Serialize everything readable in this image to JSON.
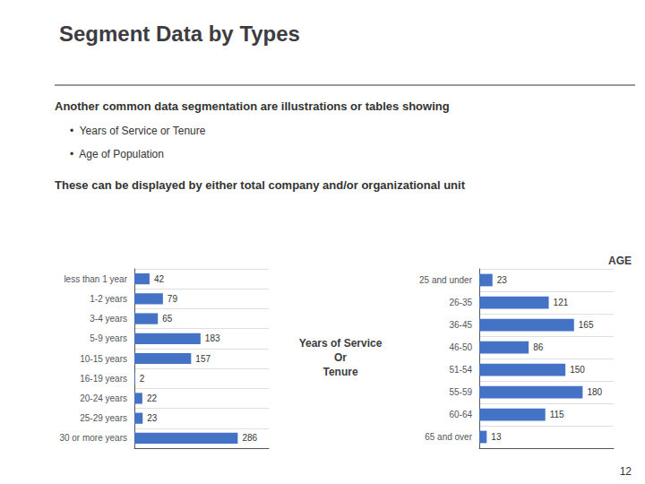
{
  "title": "Segment Data by Types",
  "annotations": [
    "Another common data segmentation are illustrations or tables showing",
    "•  Years of Service or Tenure",
    "•  Age of Population",
    "These can be displayed by either total company and/or organizational unit",
    "12"
  ],
  "chart_data": [
    {
      "type": "bar",
      "title": "Years of Service\nOr\nTenure",
      "orientation": "horizontal",
      "categories": [
        "less than 1 year",
        "1-2 years",
        "3-4 years",
        "5-9 years",
        "10-15 years",
        "16-19 years",
        "20-24 years",
        "25-29 years",
        "30 or more years"
      ],
      "values": [
        42,
        79,
        65,
        183,
        157,
        2,
        22,
        23,
        286
      ],
      "color": "#4472C4",
      "xlim": [
        0,
        371.8
      ],
      "data_labels": true,
      "tick_labels": "y",
      "grid": true
    },
    {
      "type": "bar",
      "title": "AGE",
      "orientation": "horizontal",
      "categories": [
        "25 and under",
        "26-35",
        "36-45",
        "46-50",
        "51-54",
        "55-59",
        "60-64",
        "65 and over"
      ],
      "values": [
        23,
        121,
        165,
        86,
        150,
        180,
        115,
        13
      ],
      "color": "#4472C4",
      "xlim": [
        0,
        234
      ],
      "data_labels": true,
      "tick_labels": "y",
      "grid": true
    }
  ]
}
